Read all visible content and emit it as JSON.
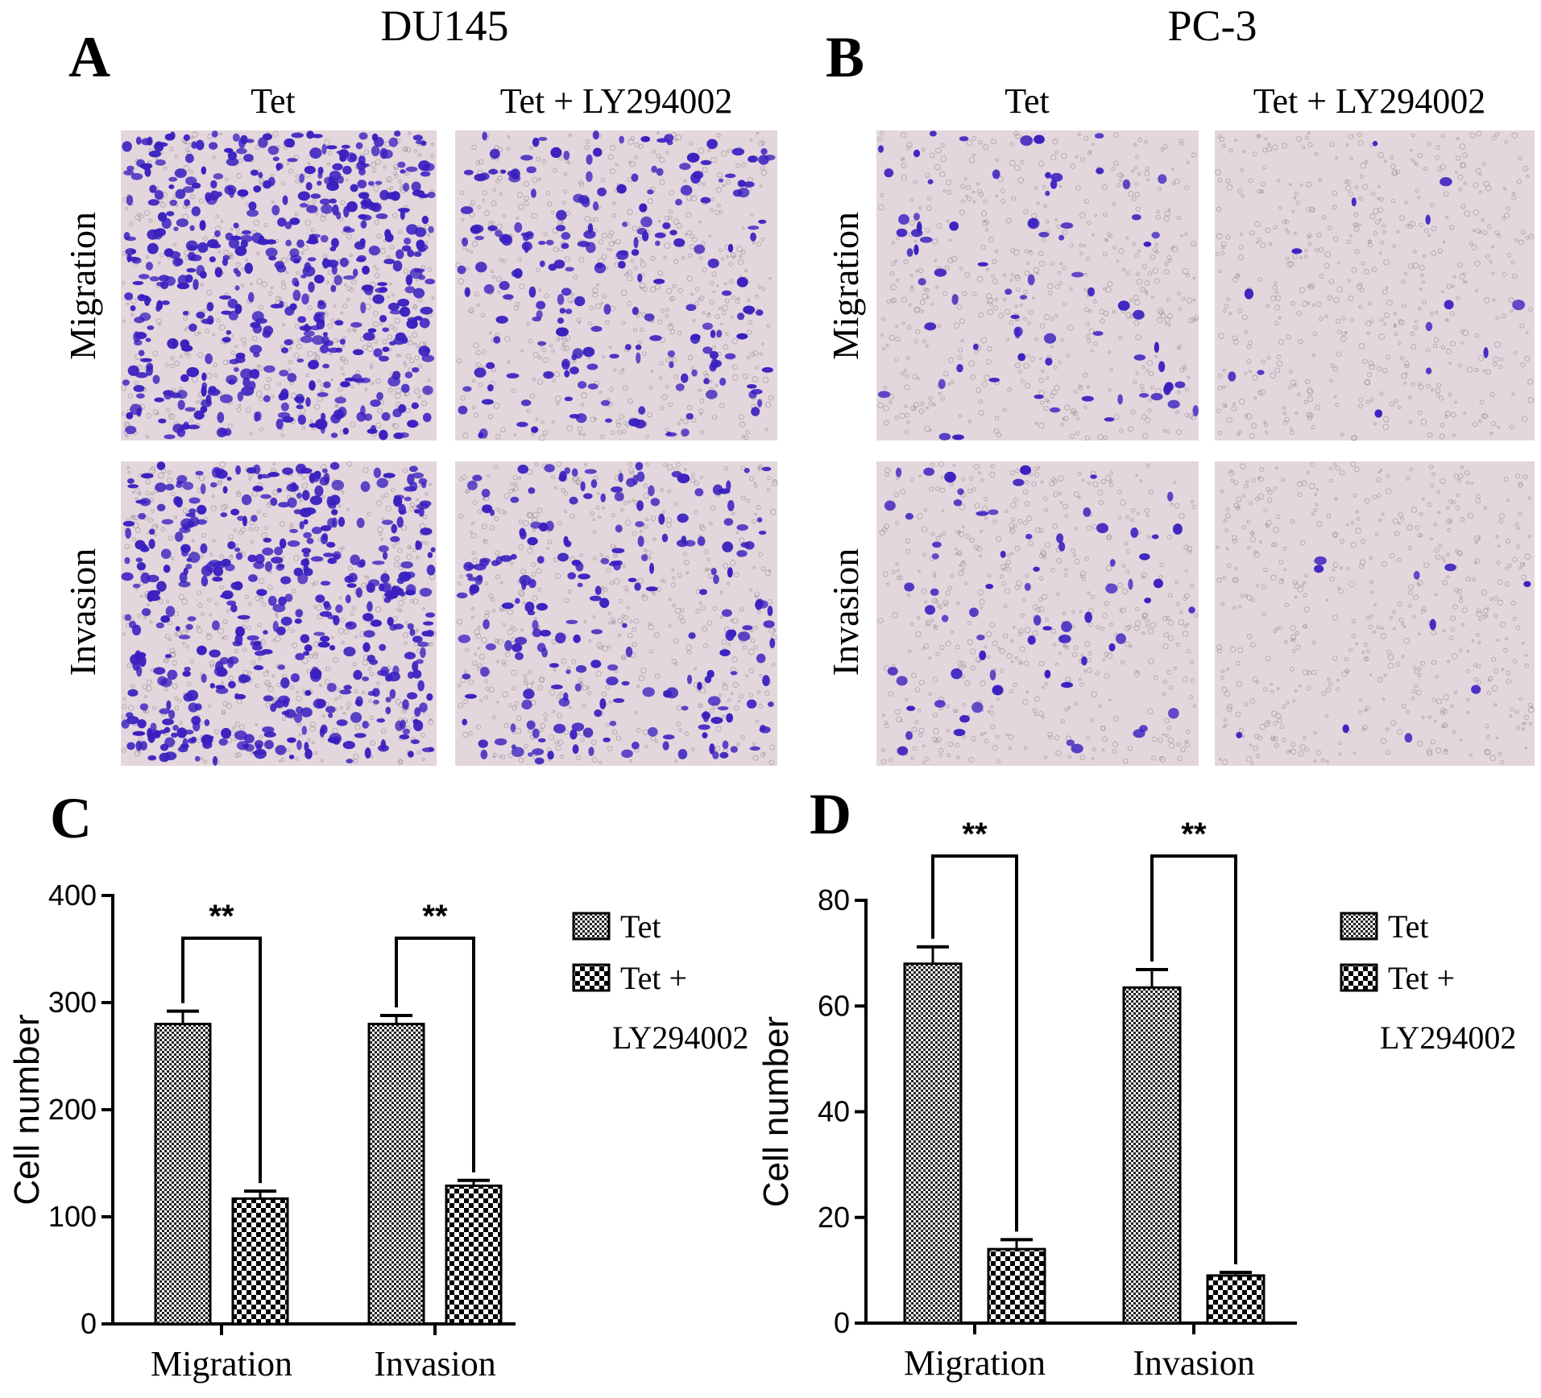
{
  "panels": {
    "A": {
      "letter": "A",
      "cell_line": "DU145"
    },
    "B": {
      "letter": "B",
      "cell_line": "PC-3"
    },
    "C": {
      "letter": "C"
    },
    "D": {
      "letter": "D"
    }
  },
  "micro": {
    "col_labels": [
      "Tet",
      "Tet + LY294002"
    ],
    "row_labels": [
      "Migration",
      "Invasion"
    ],
    "stain_color": "#3a1fbf",
    "membrane_color": "#e3d7dd"
  },
  "colors": {
    "bar_fill": "#ffffff",
    "bar_stroke": "#000000",
    "pattern": "#000000"
  },
  "chart_data": [
    {
      "type": "bar",
      "panel": "C",
      "categories": [
        "Migration",
        "Invasion"
      ],
      "series": [
        {
          "name": "Tet",
          "values": [
            280,
            280
          ],
          "errors": [
            12,
            8
          ]
        },
        {
          "name": "Tet + LY294002",
          "values": [
            117,
            129
          ],
          "errors": [
            7,
            5
          ]
        }
      ],
      "ylabel": "Cell number",
      "ylim": [
        0,
        400
      ],
      "yticks": [
        "0",
        "100",
        "200",
        "300",
        "400"
      ],
      "significance": [
        "**",
        "**"
      ],
      "legend": [
        "Tet",
        "Tet +",
        "LY294002"
      ],
      "legend_position": "right"
    },
    {
      "type": "bar",
      "panel": "D",
      "categories": [
        "Migration",
        "Invasion"
      ],
      "series": [
        {
          "name": "Tet",
          "values": [
            68,
            63.5
          ],
          "errors": [
            3.2,
            3.4
          ]
        },
        {
          "name": "Tet + LY294002",
          "values": [
            14,
            9
          ],
          "errors": [
            1.8,
            0.6
          ]
        }
      ],
      "ylabel": "Cell number",
      "ylim": [
        0,
        80
      ],
      "yticks": [
        "0",
        "20",
        "40",
        "60",
        "80"
      ],
      "significance": [
        "**",
        "**"
      ],
      "legend": [
        "Tet",
        "Tet +",
        "LY294002"
      ],
      "legend_position": "right"
    }
  ]
}
